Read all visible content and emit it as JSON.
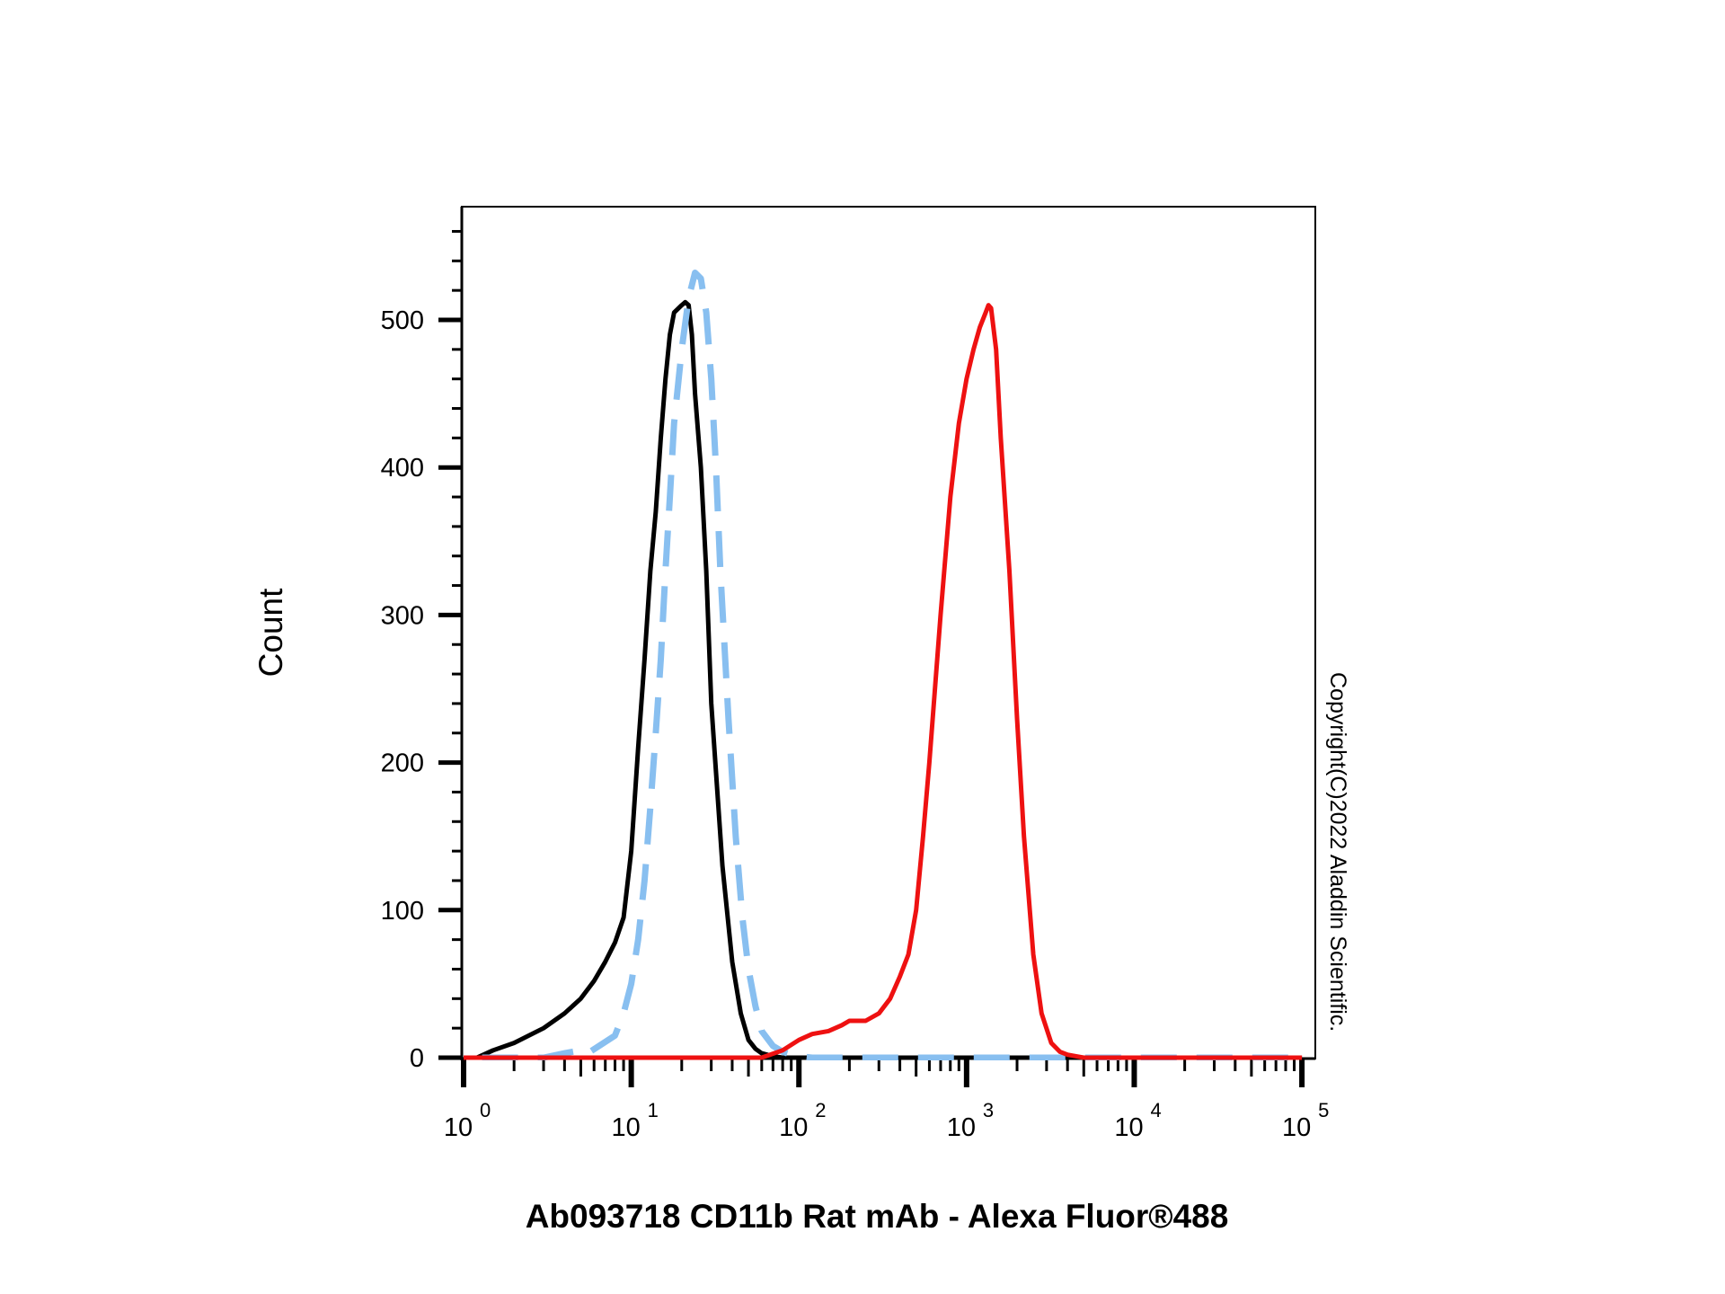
{
  "chart_data": {
    "type": "line",
    "xlabel": "Ab093718 CD11b Rat mAb - Alexa Fluor®488",
    "ylabel": "Count",
    "x_scale": "log",
    "xlim": [
      1,
      100000
    ],
    "ylim": [
      0,
      580
    ],
    "grid": false,
    "y_ticks": [
      0,
      100,
      200,
      300,
      400,
      500
    ],
    "x_ticks": [
      {
        "value": 1,
        "base": "10",
        "exp": "0"
      },
      {
        "value": 10,
        "base": "10",
        "exp": "1"
      },
      {
        "value": 100,
        "base": "10",
        "exp": "2"
      },
      {
        "value": 1000,
        "base": "10",
        "exp": "3"
      },
      {
        "value": 10000,
        "base": "10",
        "exp": "4"
      },
      {
        "value": 100000,
        "base": "10",
        "exp": "5"
      }
    ],
    "series": [
      {
        "color": "#000000",
        "dash": "solid",
        "x": [
          0.6,
          1.2,
          1.5,
          2.0,
          3.0,
          4.0,
          5.0,
          6.0,
          7.0,
          8.0,
          9.0,
          10.0,
          11.0,
          12.0,
          13.0,
          14.0,
          15.0,
          16.0,
          17.0,
          18.0,
          20.0,
          21.0,
          22.0,
          23.0,
          24.0,
          26.0,
          28.0,
          30.0,
          35.0,
          40.0,
          45.0,
          50.0,
          55.0,
          60.0,
          70.0,
          80.0,
          90.0,
          100000
        ],
        "y": [
          0,
          0,
          5,
          10,
          20,
          30,
          40,
          52,
          65,
          78,
          95,
          140,
          210,
          270,
          330,
          370,
          420,
          460,
          490,
          505,
          510,
          512,
          510,
          490,
          450,
          400,
          330,
          240,
          130,
          65,
          30,
          12,
          6,
          3,
          1,
          0,
          0,
          0
        ]
      },
      {
        "color": "#88bff0",
        "dash": "dashed",
        "x": [
          0.6,
          3.0,
          4.0,
          5.0,
          5.5,
          8.0,
          9.0,
          10.0,
          11.0,
          12.0,
          13.0,
          14.0,
          15.0,
          16.0,
          17.0,
          18.0,
          20.0,
          22.0,
          24.0,
          26.0,
          28.0,
          30.0,
          32.0,
          34.0,
          38.0,
          42.0,
          46.0,
          50.0,
          55.0,
          60.0,
          70.0,
          80.0,
          90.0,
          100.0,
          120.0,
          100000
        ],
        "y": [
          0,
          0,
          3,
          5,
          3,
          15,
          30,
          50,
          80,
          120,
          170,
          220,
          270,
          330,
          380,
          430,
          480,
          515,
          532,
          528,
          505,
          460,
          400,
          330,
          230,
          150,
          95,
          60,
          35,
          18,
          8,
          4,
          2,
          1,
          0,
          0
        ]
      },
      {
        "color": "#ee1111",
        "dash": "solid",
        "x": [
          0.6,
          60.0,
          80.0,
          100.0,
          120.0,
          150.0,
          180.0,
          200.0,
          250.0,
          300.0,
          350.0,
          400.0,
          450.0,
          500.0,
          550.0,
          600.0,
          700.0,
          800.0,
          900.0,
          1000.0,
          1100.0,
          1200.0,
          1300.0,
          1350.0,
          1400.0,
          1500.0,
          1600.0,
          1800.0,
          2000.0,
          2200.0,
          2500.0,
          2800.0,
          3200.0,
          3600.0,
          4000.0,
          4500.0,
          5000.0,
          6000.0,
          100000
        ],
        "y": [
          0,
          0,
          5,
          12,
          16,
          18,
          22,
          25,
          25,
          30,
          40,
          55,
          70,
          100,
          150,
          200,
          300,
          380,
          430,
          460,
          480,
          495,
          505,
          510,
          508,
          480,
          420,
          330,
          230,
          150,
          70,
          30,
          10,
          4,
          2,
          1,
          0,
          0,
          0
        ]
      }
    ]
  },
  "copyright": "Copyright(C)2022 Aladdin Scientific."
}
